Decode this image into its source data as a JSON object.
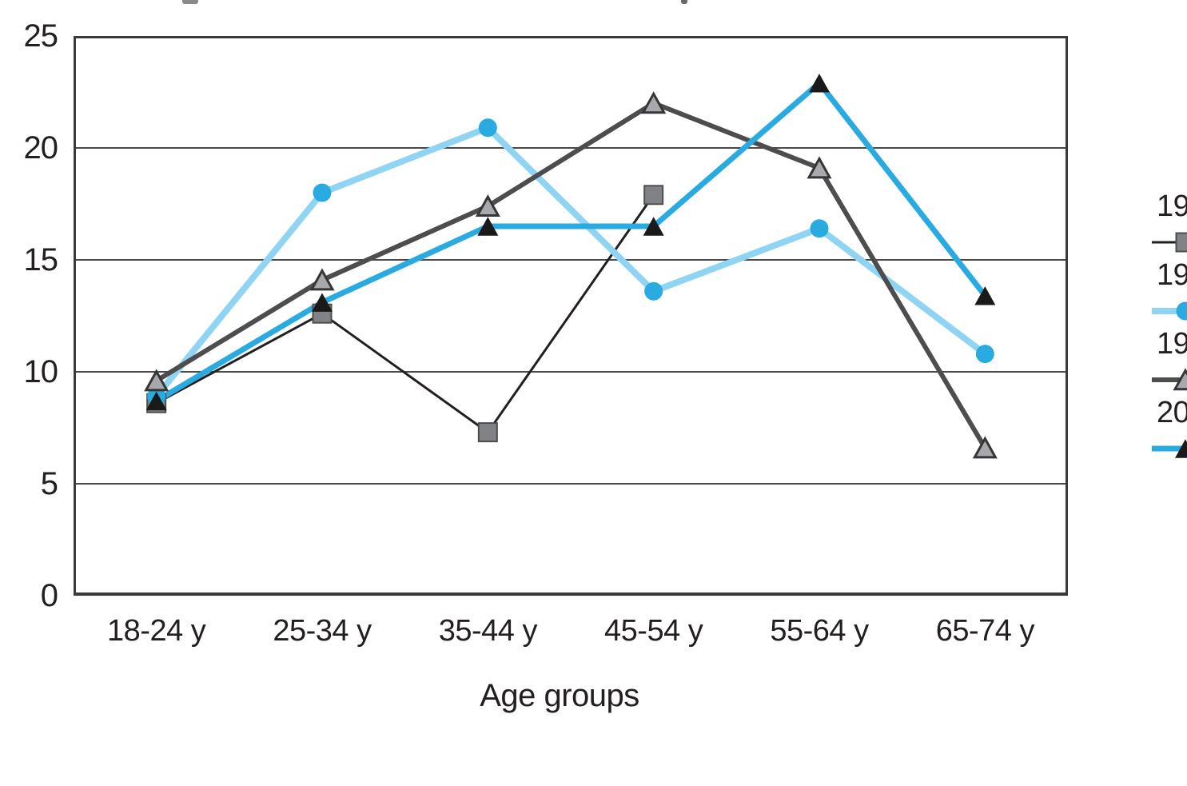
{
  "chart_data": {
    "type": "line",
    "title": "",
    "title_note": "title cropped out of frame at top edge",
    "xlabel": "Age groups",
    "ylabel": "",
    "categories": [
      "18-24 y",
      "25-34 y",
      "35-44 y",
      "45-54 y",
      "55-64 y",
      "65-74 y"
    ],
    "y_ticks": [
      0,
      5,
      10,
      15,
      20,
      25
    ],
    "ylim": [
      0,
      25
    ],
    "grid": "horizontal",
    "legend_position": "right-outside-truncated",
    "series": [
      {
        "name": "19",
        "marker": "square",
        "line_color": "#231F20",
        "line_width": 3,
        "marker_fill": "#808285",
        "marker_stroke": "#4D4D4D",
        "marker_size": 23,
        "values": [
          8.6,
          12.6,
          7.3,
          17.9,
          null,
          null
        ]
      },
      {
        "name": "19",
        "marker": "circle",
        "line_color": "#8FD4F2",
        "line_width": 8,
        "marker_fill": "#29ABE2",
        "marker_stroke": "none",
        "marker_size": 23,
        "values": [
          8.9,
          18.0,
          20.9,
          13.6,
          16.4,
          10.8
        ]
      },
      {
        "name": "19",
        "marker": "triangle-open",
        "line_color": "#4D4D4D",
        "line_width": 6,
        "marker_fill": "#A7A9AC",
        "marker_stroke": "#363636",
        "marker_size": 26,
        "values": [
          9.6,
          14.1,
          17.4,
          22.0,
          19.1,
          6.6
        ]
      },
      {
        "name": "20",
        "marker": "triangle",
        "line_color": "#29ABE2",
        "line_width": 7,
        "marker_fill": "#1A1A1A",
        "marker_stroke": "none",
        "marker_size": 26,
        "values": [
          8.7,
          13.1,
          16.5,
          16.5,
          22.9,
          13.4
        ]
      }
    ]
  },
  "axes_style": {
    "border_color": "#3A3A3A",
    "grid_color": "#4A4A4A",
    "text_color": "#231F20"
  }
}
